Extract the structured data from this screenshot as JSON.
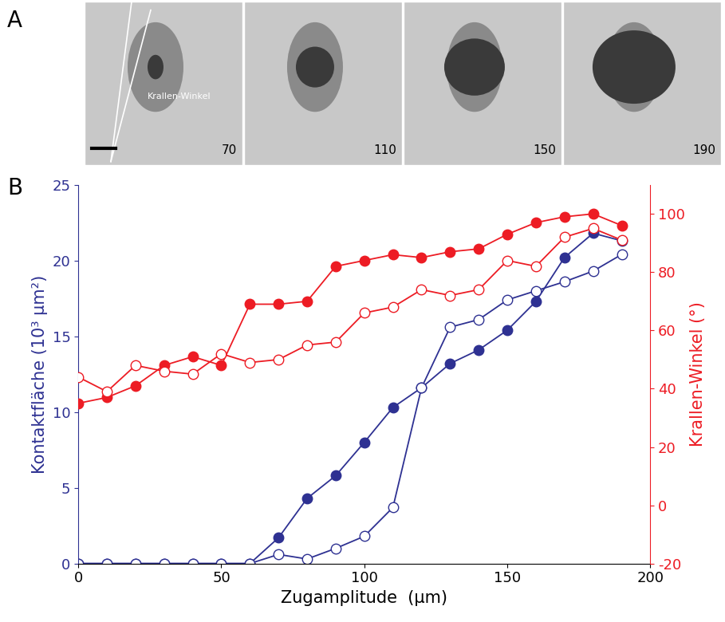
{
  "panel_labels": [
    "A",
    "B"
  ],
  "images": {
    "frame_labels": [
      70,
      110,
      150,
      190
    ],
    "annotation": "Krallen-Winkel"
  },
  "chart_data": {
    "type": "line",
    "x_label": "Zugamplitude  (µm)",
    "y_label": "Kontaktfläche (10³ µm²)",
    "y2_label": "Krallen-Winkel (°)",
    "y_color": "#2e3192",
    "y2_color": "#ed1c24",
    "x": [
      0,
      10,
      20,
      30,
      40,
      50,
      60,
      70,
      80,
      90,
      100,
      110,
      120,
      130,
      140,
      150,
      160,
      170,
      180,
      190
    ],
    "xlim": [
      0,
      200
    ],
    "xticks": [
      0,
      50,
      100,
      150,
      200
    ],
    "ylim": [
      0,
      25
    ],
    "yticks": [
      0,
      5,
      10,
      15,
      20,
      25
    ],
    "y2lim": [
      -20,
      110
    ],
    "y2ticks": [
      -20,
      0,
      20,
      40,
      60,
      80,
      100
    ],
    "series": [
      {
        "color": "#2e3192",
        "marker": "filled_circle",
        "axis": "y",
        "values": [
          0,
          0,
          0,
          0,
          0,
          0,
          0,
          1.7,
          4.3,
          5.8,
          8.0,
          10.3,
          11.6,
          13.2,
          14.1,
          15.4,
          17.3,
          20.2,
          21.8,
          21.3
        ]
      },
      {
        "color": "#2e3192",
        "marker": "open_circle",
        "axis": "y",
        "values": [
          0,
          0,
          0,
          0,
          0,
          0,
          0,
          0.6,
          0.3,
          1.0,
          1.8,
          3.7,
          11.6,
          15.6,
          16.1,
          17.4,
          18.0,
          18.6,
          19.3,
          20.4
        ]
      },
      {
        "color": "#ed1c24",
        "marker": "filled_circle",
        "axis": "y2",
        "values": [
          35,
          37,
          41,
          48,
          51,
          48,
          69,
          69,
          70,
          82,
          84,
          86,
          85,
          87,
          88,
          93,
          97,
          99,
          100,
          96
        ]
      },
      {
        "color": "#ed1c24",
        "marker": "open_circle",
        "axis": "y2",
        "values": [
          44,
          39,
          48,
          46,
          45,
          52,
          49,
          50,
          55,
          56,
          66,
          68,
          74,
          72,
          74,
          84,
          82,
          92,
          95,
          91
        ]
      }
    ]
  }
}
